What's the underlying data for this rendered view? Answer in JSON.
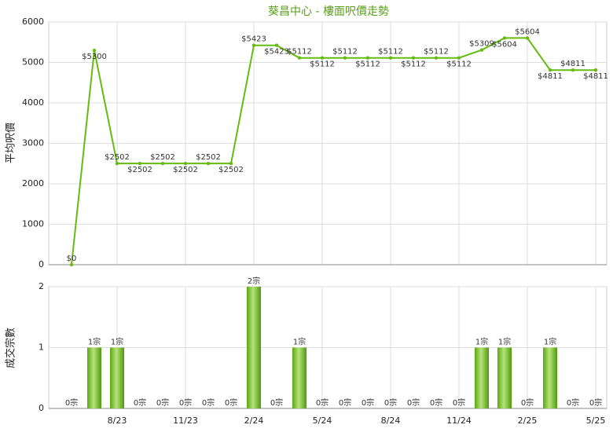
{
  "chart_data": [
    {
      "type": "line",
      "title": "葵昌中心 - 樓面呎價走勢",
      "ylabel": "平均呎價",
      "values": [
        0,
        5300,
        2502,
        2502,
        2502,
        2502,
        2502,
        2502,
        5423,
        5423,
        5112,
        5112,
        5112,
        5112,
        5112,
        5112,
        5112,
        5112,
        5309,
        5604,
        5604,
        4811,
        4811,
        4811
      ],
      "value_labels": [
        "$0",
        "$5300",
        "$2502",
        "$2502",
        "$2502",
        "$2502",
        "$2502",
        "$2502",
        "$5423",
        "$5423",
        "$5112",
        "$5112",
        "$5112",
        "$5112",
        "$5112",
        "$5112",
        "$5112",
        "$5112",
        "$5309",
        "$5604",
        "$5604",
        "$4811",
        "$4811",
        "$4811"
      ],
      "color": "#66bb11",
      "ylim": [
        0,
        6000
      ],
      "yticks": [
        0,
        1000,
        2000,
        3000,
        4000,
        5000,
        6000
      ],
      "grid": true
    },
    {
      "type": "bar",
      "ylabel": "成交宗數",
      "categories": [
        null,
        null,
        "8/23",
        null,
        null,
        "11/23",
        null,
        null,
        "2/24",
        null,
        null,
        "5/24",
        null,
        null,
        "8/24",
        null,
        null,
        "11/24",
        null,
        null,
        "2/25",
        null,
        null,
        "5/25"
      ],
      "values": [
        0,
        1,
        1,
        0,
        0,
        0,
        0,
        0,
        2,
        0,
        1,
        0,
        0,
        0,
        0,
        0,
        0,
        0,
        1,
        1,
        0,
        1,
        0,
        0
      ],
      "value_labels": [
        "0宗",
        "1宗",
        "1宗",
        "0宗",
        "0宗",
        "0宗",
        "0宗",
        "0宗",
        "2宗",
        "0宗",
        "1宗",
        "0宗",
        "0宗",
        "0宗",
        "0宗",
        "0宗",
        "0宗",
        "0宗",
        "1宗",
        "1宗",
        "0宗",
        "1宗",
        "0宗",
        "0宗"
      ],
      "color": "#66bb11",
      "ylim": [
        0,
        2
      ],
      "yticks": [
        0,
        1,
        2
      ],
      "grid": true
    }
  ]
}
